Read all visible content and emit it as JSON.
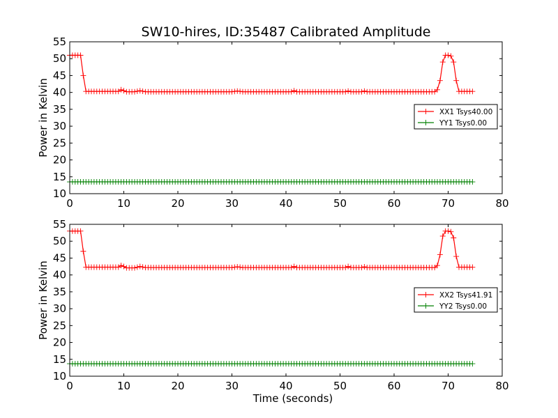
{
  "figure": {
    "title": "SW10-hires, ID:35487 Calibrated Amplitude"
  },
  "chart_data": [
    {
      "type": "line",
      "title": "SW10-hires, ID:35487 Calibrated Amplitude",
      "xlabel": "",
      "ylabel": "Power in Kelvin",
      "xlim": [
        0,
        80
      ],
      "ylim": [
        10,
        55
      ],
      "xticks": [
        0,
        10,
        20,
        30,
        40,
        50,
        60,
        70,
        80
      ],
      "yticks": [
        10,
        15,
        20,
        25,
        30,
        35,
        40,
        45,
        50,
        55
      ],
      "grid": false,
      "legend_position": "center-right",
      "marker": "plus",
      "series": [
        {
          "name": "XX1 Tsys40.00",
          "color": "#ff0000",
          "points": [
            [
              0,
              51.0
            ],
            [
              0.5,
              51.0
            ],
            [
              1.0,
              51.0
            ],
            [
              1.5,
              51.0
            ],
            [
              2.0,
              51.0
            ],
            [
              2.5,
              45.0
            ],
            [
              3.0,
              40.3
            ],
            [
              9.0,
              40.3
            ],
            [
              9.5,
              40.8
            ],
            [
              10.0,
              40.5
            ],
            [
              10.5,
              40.2
            ],
            [
              12.0,
              40.2
            ],
            [
              13.0,
              40.5
            ],
            [
              14.0,
              40.2
            ],
            [
              30.0,
              40.2
            ],
            [
              31.0,
              40.4
            ],
            [
              32.0,
              40.2
            ],
            [
              41.0,
              40.2
            ],
            [
              41.5,
              40.5
            ],
            [
              42.0,
              40.2
            ],
            [
              51.0,
              40.2
            ],
            [
              51.5,
              40.4
            ],
            [
              52.0,
              40.2
            ],
            [
              54.0,
              40.2
            ],
            [
              54.5,
              40.4
            ],
            [
              55.0,
              40.2
            ],
            [
              67.5,
              40.2
            ],
            [
              68.0,
              40.8
            ],
            [
              68.5,
              43.5
            ],
            [
              69.0,
              49.0
            ],
            [
              69.5,
              51.0
            ],
            [
              70.0,
              51.0
            ],
            [
              70.5,
              50.8
            ],
            [
              71.0,
              49.0
            ],
            [
              71.5,
              43.5
            ],
            [
              72.0,
              40.3
            ],
            [
              74.5,
              40.3
            ]
          ]
        },
        {
          "name": "YY1 Tsys0.00",
          "color": "#008000",
          "points": [
            [
              0,
              13.5
            ],
            [
              74.5,
              13.5
            ]
          ]
        }
      ]
    },
    {
      "type": "line",
      "title": "",
      "xlabel": "Time (seconds)",
      "ylabel": "Power in Kelvin",
      "xlim": [
        0,
        80
      ],
      "ylim": [
        10,
        55
      ],
      "xticks": [
        0,
        10,
        20,
        30,
        40,
        50,
        60,
        70,
        80
      ],
      "yticks": [
        10,
        15,
        20,
        25,
        30,
        35,
        40,
        45,
        50,
        55
      ],
      "grid": false,
      "legend_position": "center-right",
      "marker": "plus",
      "series": [
        {
          "name": "XX2 Tsys41.91",
          "color": "#ff0000",
          "points": [
            [
              0,
              53.0
            ],
            [
              0.5,
              53.0
            ],
            [
              1.0,
              53.0
            ],
            [
              1.5,
              53.0
            ],
            [
              2.0,
              53.0
            ],
            [
              2.5,
              47.0
            ],
            [
              3.0,
              42.3
            ],
            [
              9.0,
              42.3
            ],
            [
              9.5,
              42.8
            ],
            [
              10.0,
              42.5
            ],
            [
              10.5,
              42.1
            ],
            [
              12.0,
              42.1
            ],
            [
              13.0,
              42.5
            ],
            [
              14.0,
              42.2
            ],
            [
              30.0,
              42.2
            ],
            [
              31.0,
              42.4
            ],
            [
              32.0,
              42.2
            ],
            [
              41.0,
              42.2
            ],
            [
              41.5,
              42.5
            ],
            [
              42.0,
              42.2
            ],
            [
              51.0,
              42.2
            ],
            [
              51.5,
              42.5
            ],
            [
              52.0,
              42.2
            ],
            [
              54.0,
              42.2
            ],
            [
              54.5,
              42.4
            ],
            [
              55.0,
              42.2
            ],
            [
              67.5,
              42.2
            ],
            [
              68.0,
              42.8
            ],
            [
              68.5,
              46.0
            ],
            [
              69.0,
              51.5
            ],
            [
              69.5,
              53.0
            ],
            [
              70.0,
              53.0
            ],
            [
              70.5,
              52.8
            ],
            [
              71.0,
              51.0
            ],
            [
              71.5,
              45.5
            ],
            [
              72.0,
              42.3
            ],
            [
              74.5,
              42.3
            ]
          ]
        },
        {
          "name": "YY2 Tsys0.00",
          "color": "#008000",
          "points": [
            [
              0,
              13.7
            ],
            [
              74.5,
              13.7
            ]
          ]
        }
      ]
    }
  ]
}
